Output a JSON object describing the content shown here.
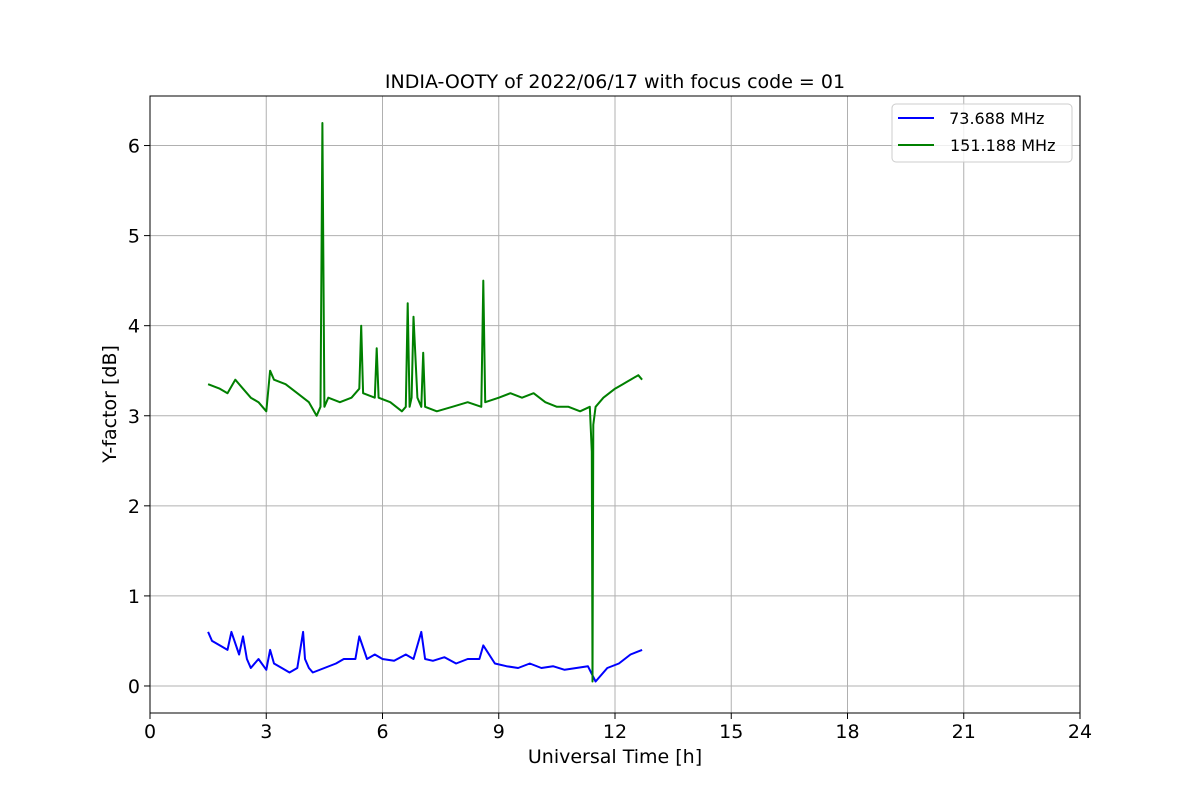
{
  "chart_data": {
    "type": "line",
    "title": "INDIA-OOTY of 2022/06/17 with focus code = 01",
    "xlabel": "Universal Time [h]",
    "ylabel": "Y-factor [dB]",
    "xlim": [
      0,
      24
    ],
    "ylim": [
      -0.3,
      6.55
    ],
    "xticks": [
      0,
      3,
      6,
      9,
      12,
      15,
      18,
      21,
      24
    ],
    "xtick_labels": [
      "0",
      "3",
      "6",
      "9",
      "12",
      "15",
      "18",
      "21",
      "24"
    ],
    "yticks": [
      0,
      1,
      2,
      3,
      4,
      5,
      6
    ],
    "ytick_labels": [
      "0",
      "1",
      "2",
      "3",
      "4",
      "5",
      "6"
    ],
    "grid": true,
    "legend_position": "top-right",
    "series": [
      {
        "name": " 73.688 MHz",
        "color": "#0000ff",
        "x": [
          1.5,
          1.6,
          1.8,
          2.0,
          2.1,
          2.3,
          2.4,
          2.5,
          2.6,
          2.8,
          3.0,
          3.1,
          3.2,
          3.4,
          3.6,
          3.8,
          3.95,
          4.0,
          4.1,
          4.2,
          4.5,
          4.8,
          5.0,
          5.3,
          5.4,
          5.6,
          5.8,
          6.0,
          6.3,
          6.6,
          6.8,
          7.0,
          7.1,
          7.3,
          7.6,
          7.9,
          8.2,
          8.5,
          8.6,
          8.9,
          9.2,
          9.5,
          9.8,
          10.1,
          10.4,
          10.7,
          11.0,
          11.3,
          11.5,
          11.8,
          12.1,
          12.4,
          12.7
        ],
        "y": [
          0.6,
          0.5,
          0.45,
          0.4,
          0.6,
          0.35,
          0.55,
          0.3,
          0.2,
          0.3,
          0.18,
          0.4,
          0.25,
          0.2,
          0.15,
          0.2,
          0.6,
          0.3,
          0.2,
          0.15,
          0.2,
          0.25,
          0.3,
          0.3,
          0.55,
          0.3,
          0.35,
          0.3,
          0.28,
          0.35,
          0.3,
          0.6,
          0.3,
          0.28,
          0.32,
          0.25,
          0.3,
          0.3,
          0.45,
          0.25,
          0.22,
          0.2,
          0.25,
          0.2,
          0.22,
          0.18,
          0.2,
          0.22,
          0.05,
          0.2,
          0.25,
          0.35,
          0.4
        ]
      },
      {
        "name": "151.188 MHz",
        "color": "#008000",
        "x": [
          1.5,
          1.8,
          2.0,
          2.2,
          2.4,
          2.6,
          2.8,
          3.0,
          3.1,
          3.2,
          3.5,
          3.8,
          4.1,
          4.3,
          4.4,
          4.45,
          4.5,
          4.6,
          4.9,
          5.2,
          5.4,
          5.45,
          5.5,
          5.8,
          5.85,
          5.9,
          6.2,
          6.5,
          6.6,
          6.65,
          6.7,
          6.75,
          6.8,
          6.9,
          7.0,
          7.05,
          7.1,
          7.4,
          7.8,
          8.2,
          8.55,
          8.6,
          8.65,
          9.0,
          9.3,
          9.6,
          9.9,
          10.2,
          10.5,
          10.8,
          11.1,
          11.35,
          11.4,
          11.42,
          11.44,
          11.5,
          11.7,
          12.0,
          12.2,
          12.4,
          12.6,
          12.7
        ],
        "y": [
          3.35,
          3.3,
          3.25,
          3.4,
          3.3,
          3.2,
          3.15,
          3.05,
          3.5,
          3.4,
          3.35,
          3.25,
          3.15,
          3.0,
          3.1,
          6.25,
          3.1,
          3.2,
          3.15,
          3.2,
          3.3,
          4.0,
          3.25,
          3.2,
          3.75,
          3.2,
          3.15,
          3.05,
          3.1,
          4.25,
          3.1,
          3.2,
          4.1,
          3.2,
          3.1,
          3.7,
          3.1,
          3.05,
          3.1,
          3.15,
          3.1,
          4.5,
          3.15,
          3.2,
          3.25,
          3.2,
          3.25,
          3.15,
          3.1,
          3.1,
          3.05,
          3.1,
          2.6,
          0.05,
          2.9,
          3.1,
          3.2,
          3.3,
          3.35,
          3.4,
          3.45,
          3.4
        ]
      }
    ]
  }
}
